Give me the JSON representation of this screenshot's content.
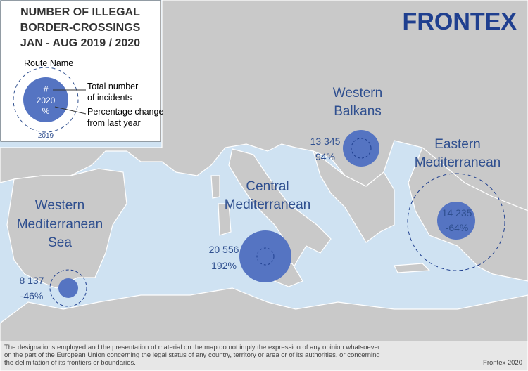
{
  "legend": {
    "title": [
      "NUMBER OF ILLEGAL",
      "BORDER-CROSSINGS",
      "JAN - AUG 2019 / 2020"
    ],
    "route_name": "Route Name",
    "symbol_count": "#",
    "symbol_year": "2020",
    "symbol_percent": "%",
    "outer_year": "2019",
    "count_label": [
      "Total number",
      "of incidents"
    ],
    "change_label": [
      "Percentage change",
      "from last year"
    ]
  },
  "logo": "FRONTEX",
  "routes": [
    {
      "name": [
        "Western",
        "Balkans"
      ],
      "count": "13 345",
      "change": "94%"
    },
    {
      "name": [
        "Eastern",
        "Mediterranean"
      ],
      "count": "14 235",
      "change": "-64%"
    },
    {
      "name": [
        "Central",
        "Mediterranean"
      ],
      "count": "20 556",
      "change": "192%"
    },
    {
      "name": [
        "Western",
        "Mediterranean",
        "Sea"
      ],
      "count": "8 137",
      "change": "-46%"
    }
  ],
  "disclaimer": [
    "The designations employed and the presentation of material on the map do not imply the expression of any opinion whatsoever",
    "on the part of the European Union concerning the legal status of any country, territory or area or of its authorities, or concerning",
    "the delimitation of its frontiers or boundaries."
  ],
  "credit": "Frontex 2020"
}
